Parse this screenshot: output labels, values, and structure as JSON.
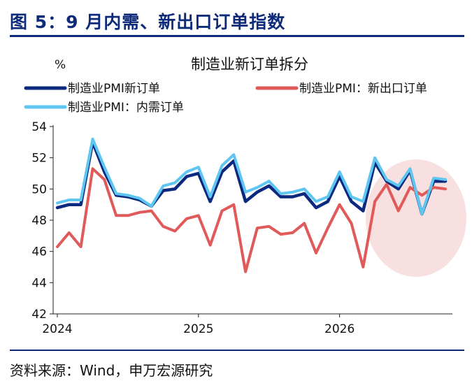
{
  "figure_title": "图 5：9 月内需、新出口订单指数",
  "source": "资料来源：Wind，申万宏源研究",
  "chart_data": {
    "type": "line",
    "title": "制造业新订单拆分",
    "ylabel": "%",
    "xlabel": "",
    "ylim": [
      42,
      54
    ],
    "yticks": [
      42,
      44,
      46,
      48,
      50,
      52,
      54
    ],
    "xtick_labels": [
      "2024",
      "2025",
      "2026"
    ],
    "xtick_index": [
      0,
      12,
      24
    ],
    "legend": "top",
    "grid": false,
    "colors": {
      "new_orders": "#0b2a7f",
      "export_orders": "#e05a5a",
      "domestic_orders": "#5ec6f0",
      "highlight": "#f7d9db"
    },
    "series": [
      {
        "name": "制造业PMI新订单",
        "key": "new_orders",
        "values": [
          48.8,
          49.0,
          49.0,
          53.0,
          51.1,
          49.6,
          49.5,
          49.3,
          48.9,
          49.9,
          50.0,
          50.8,
          51.0,
          49.2,
          51.1,
          51.8,
          49.2,
          49.8,
          50.2,
          49.5,
          49.5,
          49.7,
          48.8,
          49.2,
          50.8,
          49.2,
          48.6,
          51.7,
          50.5,
          50.0,
          51.2,
          48.4,
          50.5,
          50.5
        ]
      },
      {
        "name": "制造业PMI：新出口订单",
        "key": "export_orders",
        "values": [
          46.3,
          47.2,
          46.3,
          51.3,
          50.6,
          48.3,
          48.3,
          48.5,
          48.6,
          47.6,
          47.3,
          48.1,
          48.3,
          46.4,
          48.6,
          49.0,
          44.7,
          47.5,
          47.6,
          47.1,
          47.2,
          47.8,
          45.9,
          47.5,
          49.0,
          47.8,
          45.0,
          49.2,
          50.3,
          48.6,
          50.1,
          49.6,
          50.1,
          50.0
        ]
      },
      {
        "name": "制造业PMI：内需订单",
        "key": "domestic_orders",
        "values": [
          49.1,
          49.3,
          49.3,
          53.2,
          51.4,
          49.7,
          49.6,
          49.4,
          48.9,
          50.2,
          50.4,
          51.1,
          51.4,
          49.5,
          51.5,
          52.2,
          49.8,
          50.1,
          50.5,
          49.7,
          49.8,
          50.0,
          49.2,
          49.5,
          51.1,
          49.5,
          49.2,
          52.0,
          50.6,
          50.2,
          51.3,
          48.4,
          50.7,
          50.6
        ]
      }
    ],
    "highlight_index_range": [
      28,
      33
    ]
  }
}
